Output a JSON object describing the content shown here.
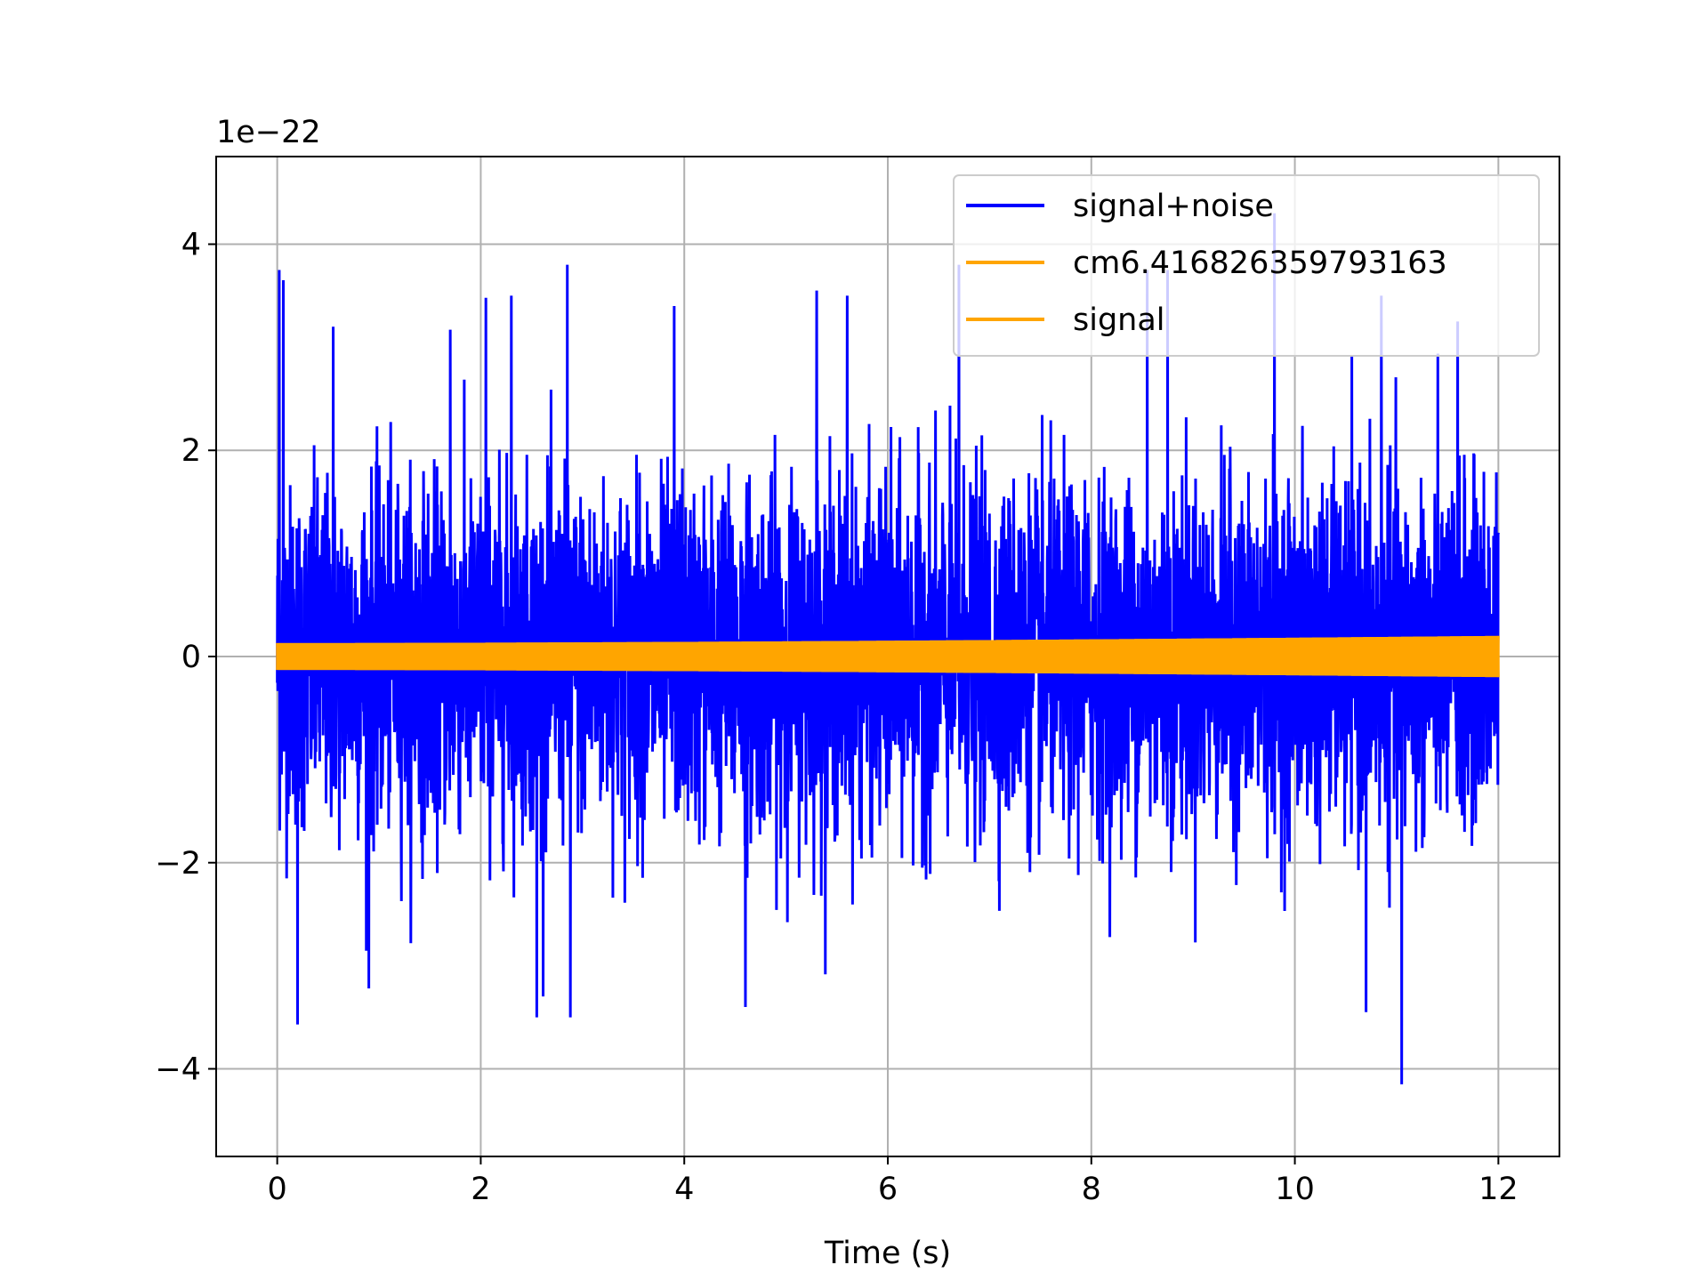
{
  "chart_data": {
    "type": "line",
    "xlabel": "Time (s)",
    "ylabel": "",
    "y_offset_label": "1e−22",
    "y_scale_exponent": -22,
    "xlim": [
      -0.6,
      12.6
    ],
    "ylim": [
      -4.85,
      4.85
    ],
    "x_ticks": [
      0,
      2,
      4,
      6,
      8,
      10,
      12
    ],
    "x_tick_labels": [
      "0",
      "2",
      "4",
      "6",
      "8",
      "10",
      "12"
    ],
    "y_ticks": [
      -4,
      -2,
      0,
      2,
      4
    ],
    "y_tick_labels": [
      "−4",
      "−2",
      "0",
      "2",
      "4"
    ],
    "grid": true,
    "legend_position": "top-right",
    "series": [
      {
        "name": "signal+noise",
        "color": "#0000ff",
        "x_range": [
          0,
          12
        ],
        "envelope_typical": [
          -2.0,
          2.0
        ],
        "peaks": [
          {
            "x": 0.02,
            "y": 3.75
          },
          {
            "x": 0.06,
            "y": 3.65
          },
          {
            "x": 0.2,
            "y": -3.57
          },
          {
            "x": 0.55,
            "y": 3.2
          },
          {
            "x": 0.9,
            "y": -3.22
          },
          {
            "x": 1.7,
            "y": 3.17
          },
          {
            "x": 2.05,
            "y": 3.48
          },
          {
            "x": 2.3,
            "y": 3.5
          },
          {
            "x": 2.55,
            "y": -3.5
          },
          {
            "x": 2.85,
            "y": 3.8
          },
          {
            "x": 2.88,
            "y": -3.5
          },
          {
            "x": 3.9,
            "y": 3.4
          },
          {
            "x": 4.6,
            "y": -3.4
          },
          {
            "x": 5.3,
            "y": 3.55
          },
          {
            "x": 5.6,
            "y": 3.5
          },
          {
            "x": 6.7,
            "y": 3.8
          },
          {
            "x": 8.55,
            "y": 3.75
          },
          {
            "x": 8.75,
            "y": 3.75
          },
          {
            "x": 9.8,
            "y": 4.3
          },
          {
            "x": 10.7,
            "y": -3.45
          },
          {
            "x": 10.85,
            "y": 3.5
          },
          {
            "x": 11.05,
            "y": -4.15
          },
          {
            "x": 11.6,
            "y": 3.25
          }
        ]
      },
      {
        "name": "cm6.416826359793163",
        "color": "#ffa500",
        "x_range": [
          0,
          12
        ],
        "amplitude_start": 0.13,
        "amplitude_end": 0.2
      },
      {
        "name": "signal",
        "color": "#ffa500",
        "x_range": [
          0,
          12
        ],
        "amplitude_start": 0.13,
        "amplitude_end": 0.2
      }
    ]
  }
}
